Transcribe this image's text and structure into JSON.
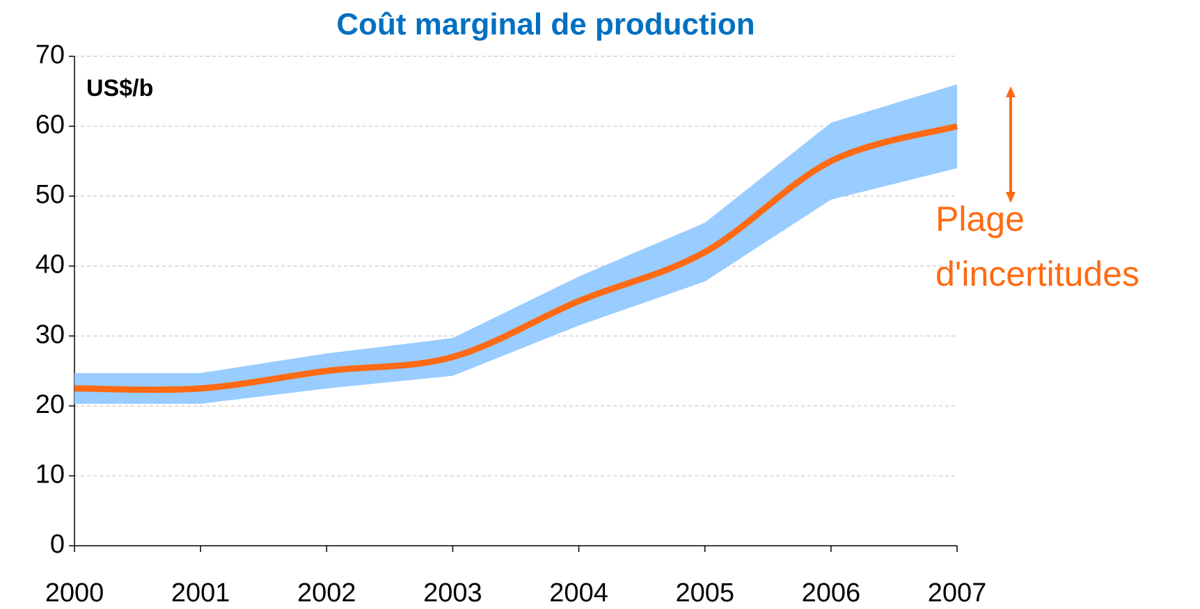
{
  "chart_data": {
    "type": "line",
    "title": "Coût marginal de production",
    "unit_label": "US$/b",
    "annotation": [
      "Plage",
      "d'incertitudes"
    ],
    "x": [
      2000,
      2001,
      2002,
      2003,
      2004,
      2005,
      2006,
      2007
    ],
    "series": [
      {
        "color": "#ff6a13",
        "values": [
          22.5,
          22.5,
          25,
          27,
          35,
          42,
          55,
          60
        ]
      }
    ],
    "band": {
      "color": "#99ccff",
      "upper": [
        24.7,
        24.7,
        27.5,
        29.7,
        38.5,
        46.2,
        60.5,
        66
      ],
      "lower": [
        20.3,
        20.3,
        22.5,
        24.3,
        31.5,
        37.8,
        49.5,
        54
      ]
    },
    "xlim": [
      2000,
      2007
    ],
    "xticks": [
      2000,
      2001,
      2002,
      2003,
      2004,
      2005,
      2006,
      2007
    ],
    "ylim": [
      0,
      70
    ],
    "yticks": [
      0,
      10,
      20,
      30,
      40,
      50,
      60,
      70
    ],
    "grid": true
  }
}
